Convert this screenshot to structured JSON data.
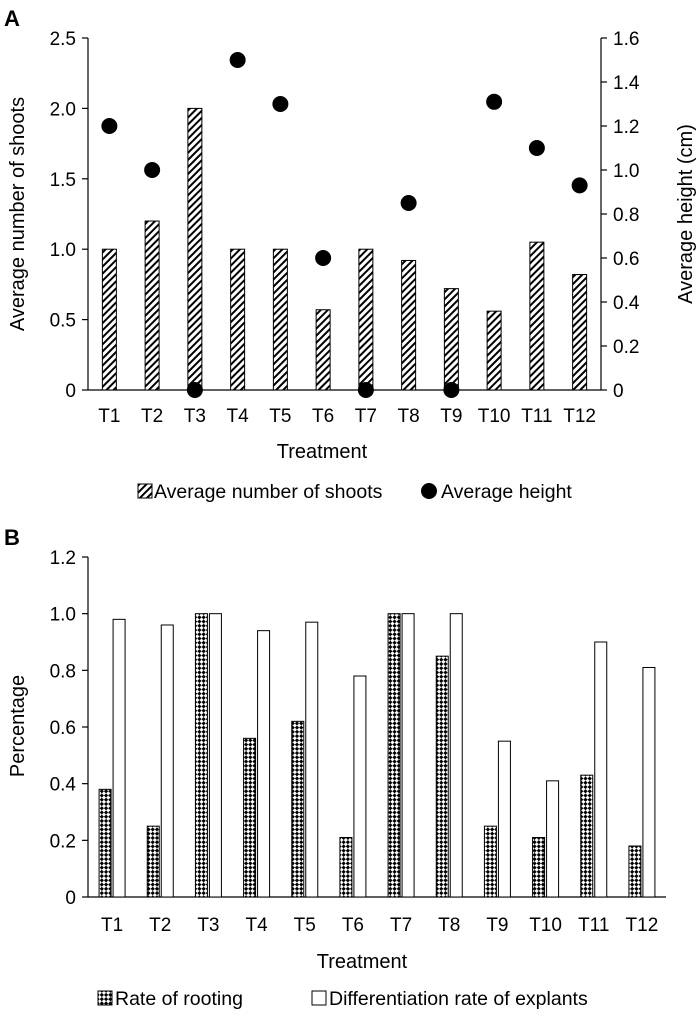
{
  "chart_data": [
    {
      "panel_label": "A",
      "type": "bar",
      "categories": [
        "T1",
        "T2",
        "T3",
        "T4",
        "T5",
        "T6",
        "T7",
        "T8",
        "T9",
        "T10",
        "T11",
        "T12"
      ],
      "xlabel": "Treatment",
      "ylabel": "Average number of shoots",
      "y2label": "Average height (cm)",
      "ylim": [
        0,
        2.5
      ],
      "yticks": [
        "0",
        "0.5",
        "1.0",
        "1.5",
        "2.0",
        "2.5"
      ],
      "y2lim": [
        0,
        1.6
      ],
      "y2ticks": [
        "0",
        "0.2",
        "0.4",
        "0.6",
        "0.8",
        "1.0",
        "1.2",
        "1.4",
        "1.6"
      ],
      "series": [
        {
          "name": "Average number of shoots",
          "kind": "bar",
          "axis": "left",
          "pattern": "hatched",
          "values": [
            1.0,
            1.2,
            2.0,
            1.0,
            1.0,
            0.57,
            1.0,
            0.92,
            0.72,
            0.56,
            1.05,
            0.82
          ]
        },
        {
          "name": "Average height",
          "kind": "scatter",
          "axis": "right",
          "color": "#000000",
          "values": [
            1.2,
            1.0,
            0.0,
            1.5,
            1.3,
            0.6,
            0.0,
            0.85,
            0.0,
            1.31,
            1.1,
            0.93
          ]
        }
      ],
      "legend": "bottom",
      "grid": false
    },
    {
      "panel_label": "B",
      "type": "bar",
      "categories": [
        "T1",
        "T2",
        "T3",
        "T4",
        "T5",
        "T6",
        "T7",
        "T8",
        "T9",
        "T10",
        "T11",
        "T12"
      ],
      "xlabel": "Treatment",
      "ylabel": "Percentage",
      "ylim": [
        0,
        1.2
      ],
      "yticks": [
        "0",
        "0.2",
        "0.4",
        "0.6",
        "0.8",
        "1.0",
        "1.2"
      ],
      "series": [
        {
          "name": "Rate of rooting",
          "kind": "bar",
          "pattern": "checked",
          "values": [
            0.38,
            0.25,
            1.0,
            0.56,
            0.62,
            0.21,
            1.0,
            0.85,
            0.25,
            0.21,
            0.43,
            0.18
          ]
        },
        {
          "name": "Differentiation rate of explants",
          "kind": "bar",
          "pattern": "white",
          "values": [
            0.98,
            0.96,
            1.0,
            0.94,
            0.97,
            0.78,
            1.0,
            1.0,
            0.55,
            0.41,
            0.9,
            0.81
          ]
        }
      ],
      "legend": "bottom",
      "grid": false
    }
  ]
}
